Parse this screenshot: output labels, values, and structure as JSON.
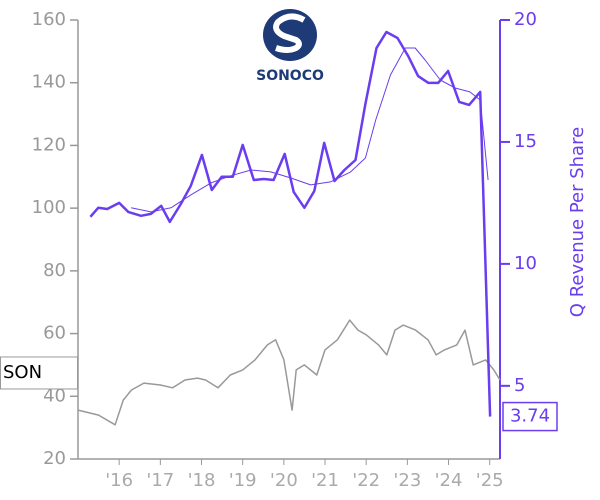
{
  "chart_data": {
    "type": "line",
    "logo_text": "SONOCO",
    "ticker": "SON",
    "y2label": "Q Revenue Per Share",
    "xlim": [
      2015.0,
      2025.25
    ],
    "xticks": [
      {
        "value": 2016,
        "label": "'16"
      },
      {
        "value": 2017,
        "label": "'17"
      },
      {
        "value": 2018,
        "label": "'18"
      },
      {
        "value": 2019,
        "label": "'19"
      },
      {
        "value": 2020,
        "label": "'20"
      },
      {
        "value": 2021,
        "label": "'21"
      },
      {
        "value": 2022,
        "label": "'22"
      },
      {
        "value": 2023,
        "label": "'23"
      },
      {
        "value": 2024,
        "label": "'24"
      },
      {
        "value": 2025,
        "label": "'25"
      }
    ],
    "ylim": [
      20,
      160
    ],
    "yticks": [
      20,
      40,
      60,
      80,
      100,
      120,
      140,
      160
    ],
    "y2lim": [
      2,
      20
    ],
    "y2ticks": [
      5,
      10,
      15,
      20
    ],
    "series": [
      {
        "axis": "y2",
        "color": "#6a3df0",
        "width": 2.5,
        "x": [
          2015.3,
          2015.49,
          2015.71,
          2016.0,
          2016.22,
          2016.53,
          2016.77,
          2017.02,
          2017.23,
          2017.5,
          2017.74,
          2018.01,
          2018.25,
          2018.49,
          2018.76,
          2019.0,
          2019.27,
          2019.51,
          2019.75,
          2020.02,
          2020.24,
          2020.5,
          2020.74,
          2020.98,
          2021.23,
          2021.47,
          2021.74,
          2021.98,
          2022.25,
          2022.49,
          2022.76,
          2023.02,
          2023.26,
          2023.51,
          2023.75,
          2023.99,
          2024.26,
          2024.5,
          2024.77,
          2025.01
        ],
        "values": [
          11.93,
          12.3,
          12.25,
          12.5,
          12.13,
          11.97,
          12.05,
          12.38,
          11.72,
          12.46,
          13.2,
          14.47,
          13.03,
          13.57,
          13.57,
          14.88,
          13.44,
          13.48,
          13.44,
          14.51,
          12.95,
          12.3,
          12.99,
          14.96,
          13.4,
          13.85,
          14.26,
          16.56,
          18.85,
          19.51,
          19.26,
          18.52,
          17.7,
          17.42,
          17.42,
          17.91,
          16.64,
          16.52,
          17.05,
          3.74
        ]
      },
      {
        "axis": "y2",
        "color": "#6a3df0",
        "width": 1,
        "x": [
          2016.29,
          2016.77,
          2017.26,
          2017.74,
          2018.23,
          2018.71,
          2019.2,
          2019.68,
          2020.17,
          2020.65,
          2021.13,
          2021.62,
          2021.98,
          2022.23,
          2022.59,
          2022.95,
          2023.19,
          2023.43,
          2023.8,
          2024.16,
          2024.52,
          2024.77,
          2024.96
        ],
        "values": [
          12.3,
          12.13,
          12.3,
          12.83,
          13.32,
          13.61,
          13.85,
          13.77,
          13.52,
          13.24,
          13.36,
          13.77,
          14.34,
          15.9,
          17.75,
          18.85,
          18.85,
          18.36,
          17.54,
          17.21,
          17.05,
          16.72,
          13.44
        ]
      },
      {
        "axis": "y",
        "color": "#999999",
        "width": 1.5,
        "x": [
          2015.0,
          2015.5,
          2015.9,
          2016.1,
          2016.3,
          2016.6,
          2017.0,
          2017.3,
          2017.6,
          2017.9,
          2018.1,
          2018.4,
          2018.7,
          2019.0,
          2019.3,
          2019.6,
          2019.8,
          2020.0,
          2020.2,
          2020.3,
          2020.5,
          2020.8,
          2021.0,
          2021.3,
          2021.6,
          2021.8,
          2022.0,
          2022.3,
          2022.5,
          2022.7,
          2022.9,
          2023.2,
          2023.5,
          2023.7,
          2023.9,
          2024.2,
          2024.4,
          2024.6,
          2024.9,
          2025.1,
          2025.25
        ],
        "values": [
          35.6,
          34.0,
          30.9,
          38.8,
          42.0,
          44.2,
          43.6,
          42.7,
          45.2,
          45.8,
          45.2,
          42.7,
          46.8,
          48.4,
          51.6,
          56.4,
          58.0,
          51.6,
          35.6,
          48.4,
          50.0,
          46.8,
          54.8,
          58.0,
          64.3,
          61.1,
          59.6,
          56.4,
          53.2,
          61.1,
          62.7,
          61.1,
          58.0,
          53.2,
          54.8,
          56.4,
          61.1,
          50.0,
          51.6,
          48.4,
          45.2
        ]
      }
    ]
  }
}
